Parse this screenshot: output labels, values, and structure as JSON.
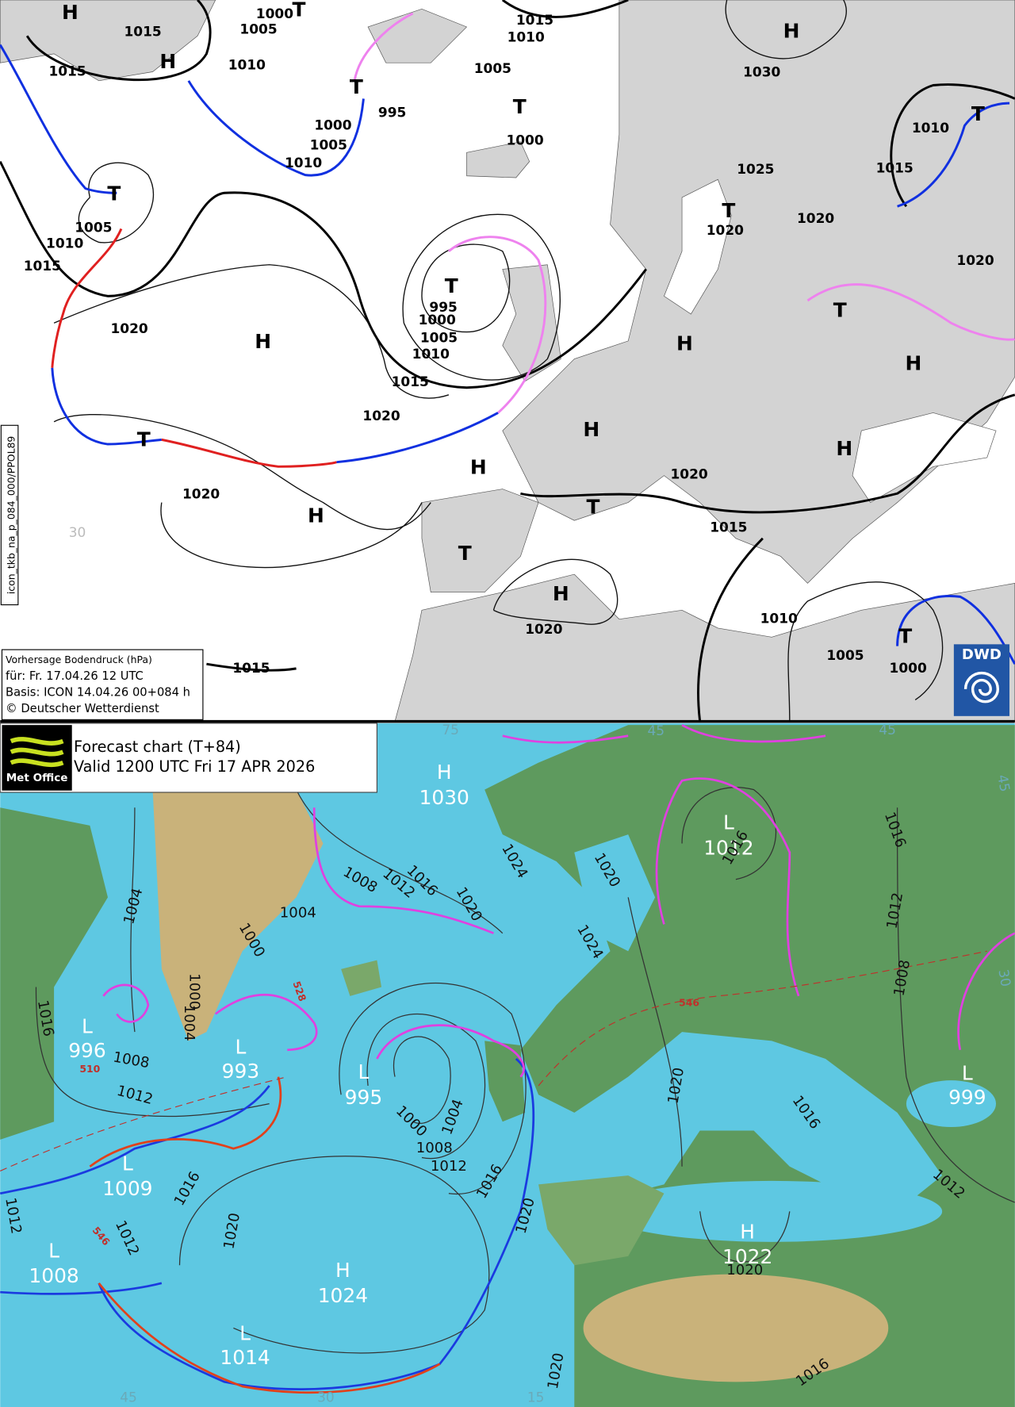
{
  "dwd_chart": {
    "legend": [
      "Vorhersage Bodendruck (hPa)",
      "für:  Fr. 17.04.26  12 UTC",
      "Basis: ICON  14.04.26 00+084 h",
      "© Deutscher Wetterdienst"
    ],
    "side_label": "icon_tkb_na_p_084_000/PPOL89",
    "logo": "DWD",
    "labels": [
      "H",
      "1015",
      "1000",
      "T",
      "1005",
      "1015",
      "1010",
      "H",
      "1015",
      "1010",
      "1005",
      "H",
      "1030",
      "T",
      "995",
      "T",
      "1000",
      "1005",
      "1000",
      "1010",
      "T",
      "1010",
      "1025",
      "1015",
      "T",
      "T",
      "1005",
      "1020",
      "1020",
      "1010",
      "1015",
      "1020",
      "T",
      "995",
      "1000",
      "T",
      "1020",
      "1005",
      "H",
      "H",
      "1010",
      "H",
      "1015",
      "1020",
      "H",
      "T",
      "H",
      "H",
      "1020",
      "1020",
      "H",
      "T",
      "1015",
      "30",
      "T",
      "H",
      "1010",
      "1020",
      "T",
      "1005",
      "1000",
      "1015"
    ]
  },
  "metoffice_chart": {
    "logo": "Met Office",
    "title": "Forecast chart (T+84)",
    "subtitle": "Valid 1200 UTC Fri 17 APR 2026",
    "labels": [
      "H",
      "1030",
      "L",
      "1012",
      "1016",
      "1024",
      "1020",
      "1016",
      "1012",
      "1008",
      "1020",
      "1004",
      "1004",
      "1000",
      "1024",
      "1016",
      "1012",
      "1008",
      "1000",
      "1004",
      "1016",
      "L",
      "996",
      "1008",
      "528",
      "546",
      "510",
      "L",
      "993",
      "L",
      "995",
      "1000",
      "1004",
      "1008",
      "1012",
      "1012",
      "1016",
      "1020",
      "1016",
      "L",
      "999",
      "L",
      "1009",
      "1016",
      "1012",
      "1020",
      "546",
      "1012",
      "1020",
      "1012",
      "L",
      "1008",
      "H",
      "1024",
      "H",
      "1022",
      "1020",
      "L",
      "1014",
      "1020",
      "1016",
      "45",
      "30",
      "15",
      "45",
      "45",
      "30",
      "45",
      "75"
    ]
  }
}
